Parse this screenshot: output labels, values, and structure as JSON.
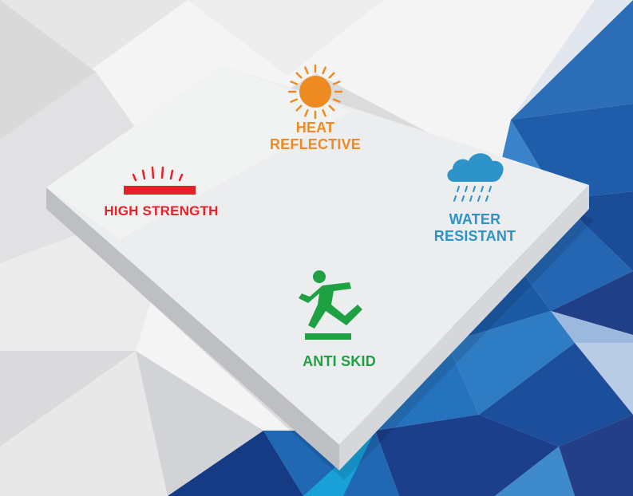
{
  "features": [
    {
      "id": "heat",
      "line1": "HEAT",
      "line2": "REFLECTIVE",
      "icon": "sun-icon"
    },
    {
      "id": "strength",
      "line1": "HIGH STRENGTH",
      "icon": "high-strength-icon"
    },
    {
      "id": "water",
      "line1": "WATER",
      "line2": "RESISTANT",
      "icon": "rain-cloud-icon"
    },
    {
      "id": "skid",
      "line1": "ANTI SKID",
      "icon": "slip-hazard-icon"
    }
  ],
  "colors": {
    "heat": "#EE8A22",
    "strength": "#E42229",
    "water": "#2E93C8",
    "skid": "#1FA043",
    "navy": "#1F3B87",
    "blue": "#1D6FB8",
    "tile_top": "#ECEDEF",
    "tile_side": "#C9CBCE"
  }
}
